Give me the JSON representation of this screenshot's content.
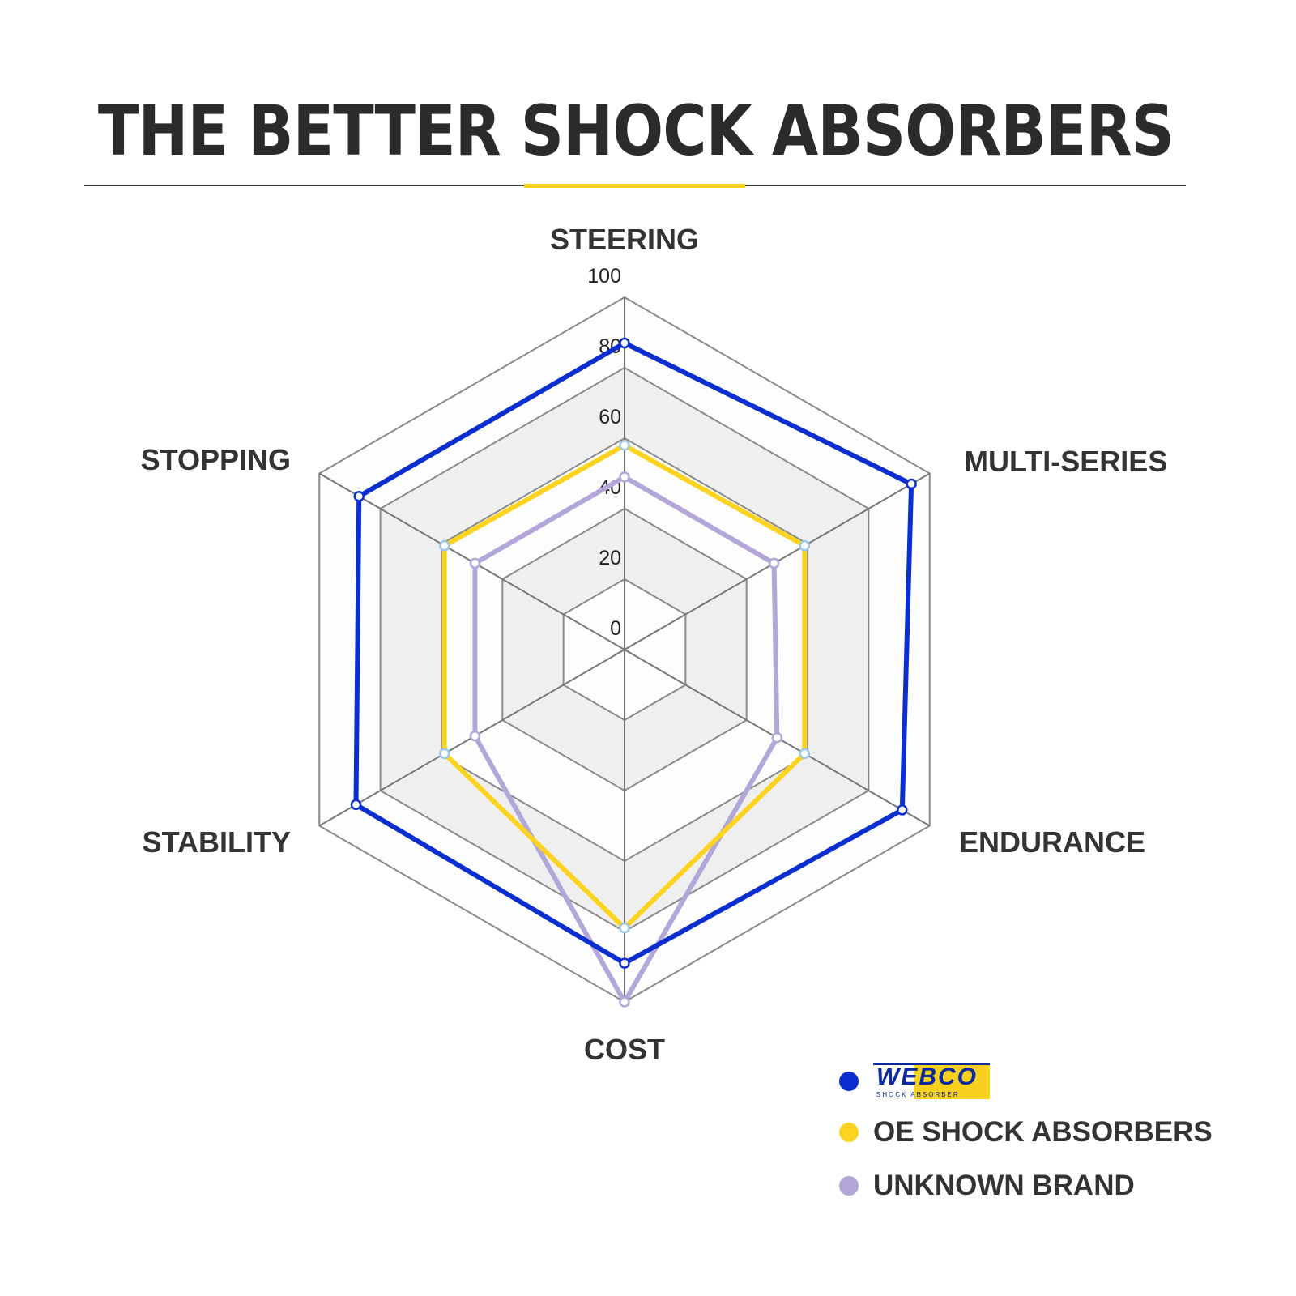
{
  "header": {
    "title": "THE BETTER SHOCK ABSORBERS"
  },
  "chart_data": {
    "type": "radar",
    "title": "THE BETTER SHOCK ABSORBERS",
    "categories": [
      "STEERING",
      "MULTI-SERIES",
      "ENDURANCE",
      "COST",
      "STABILITY",
      "STOPPING"
    ],
    "rlim": [
      0,
      100
    ],
    "ticks": [
      "0",
      "20",
      "40",
      "60",
      "80",
      "100"
    ],
    "grid": true,
    "legend_position": "bottom-right",
    "series": [
      {
        "name": "WEBCO",
        "color": "#0a2ed0",
        "values": [
          87,
          94,
          91,
          89,
          88,
          87
        ]
      },
      {
        "name": "OE SHOCK ABSORBERS",
        "color": "#fcd31e",
        "values": [
          58,
          59,
          59,
          79,
          59,
          59
        ]
      },
      {
        "name": "UNKNOWN BRAND",
        "color": "#b3a6d9",
        "values": [
          49,
          49,
          50,
          100,
          49,
          49
        ]
      }
    ]
  },
  "legend": {
    "logo_text": "WEBCO",
    "logo_subtext": "SHOCK ABSORBER",
    "items": [
      "OE SHOCK ABSORBERS",
      "UNKNOWN BRAND"
    ]
  }
}
